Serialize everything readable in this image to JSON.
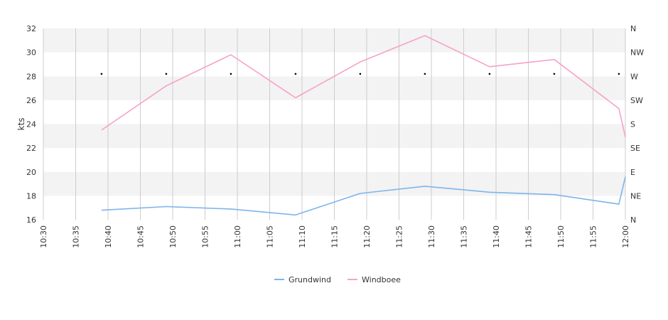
{
  "chart_data": {
    "type": "line",
    "ylabel": "kts",
    "ylim": [
      16,
      32
    ],
    "y_ticks": [
      16,
      18,
      20,
      22,
      24,
      26,
      28,
      30,
      32
    ],
    "x_ticks": [
      "10:30",
      "10:35",
      "10:40",
      "10:45",
      "10:50",
      "10:55",
      "11:00",
      "11:05",
      "11:10",
      "11:15",
      "11:20",
      "11:25",
      "11:30",
      "11:35",
      "11:40",
      "11:45",
      "11:50",
      "11:55",
      "12:00"
    ],
    "x_range_minutes": [
      630,
      720
    ],
    "right_axis_labels": [
      "N",
      "NW",
      "W",
      "SW",
      "S",
      "SE",
      "E",
      "NE",
      "N"
    ],
    "grid": "horizontal bands and vertical lines",
    "legend_position": "bottom-center",
    "series": [
      {
        "name": "Grundwind",
        "color": "#7cb5ec",
        "x": [
          "10:39",
          "10:49",
          "10:59",
          "11:09",
          "11:19",
          "11:29",
          "11:39",
          "11:49",
          "11:59",
          "12:00"
        ],
        "y": [
          16.8,
          17.1,
          16.9,
          16.4,
          18.2,
          18.8,
          18.3,
          18.1,
          17.3,
          19.6
        ]
      },
      {
        "name": "Windboee",
        "color": "#f7a1c9",
        "x": [
          "10:39",
          "10:49",
          "10:59",
          "11:09",
          "11:19",
          "11:29",
          "11:39",
          "11:49",
          "11:59",
          "12:00"
        ],
        "y": [
          23.5,
          27.2,
          29.8,
          26.2,
          29.2,
          31.4,
          28.8,
          29.4,
          25.3,
          22.9
        ]
      }
    ],
    "direction_markers": {
      "x": [
        "10:39",
        "10:49",
        "10:59",
        "11:09",
        "11:19",
        "11:29",
        "11:39",
        "11:49",
        "11:59"
      ],
      "y": [
        28.2,
        28.2,
        28.2,
        28.2,
        28.2,
        28.2,
        28.2,
        28.2,
        28.2
      ]
    }
  }
}
